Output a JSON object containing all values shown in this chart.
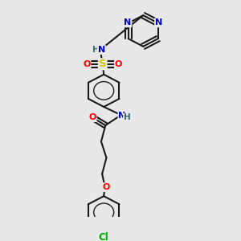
{
  "bg_color": "#e8e8e8",
  "bond_color": "#1a1a1a",
  "bond_width": 1.5,
  "atom_colors": {
    "N": "#0000cc",
    "O": "#ff0000",
    "S": "#cccc00",
    "Cl": "#00aa00",
    "H": "#336666",
    "C": "#1a1a1a"
  },
  "font_size": 8.0,
  "fig_w": 3.0,
  "fig_h": 3.0,
  "dpi": 100
}
